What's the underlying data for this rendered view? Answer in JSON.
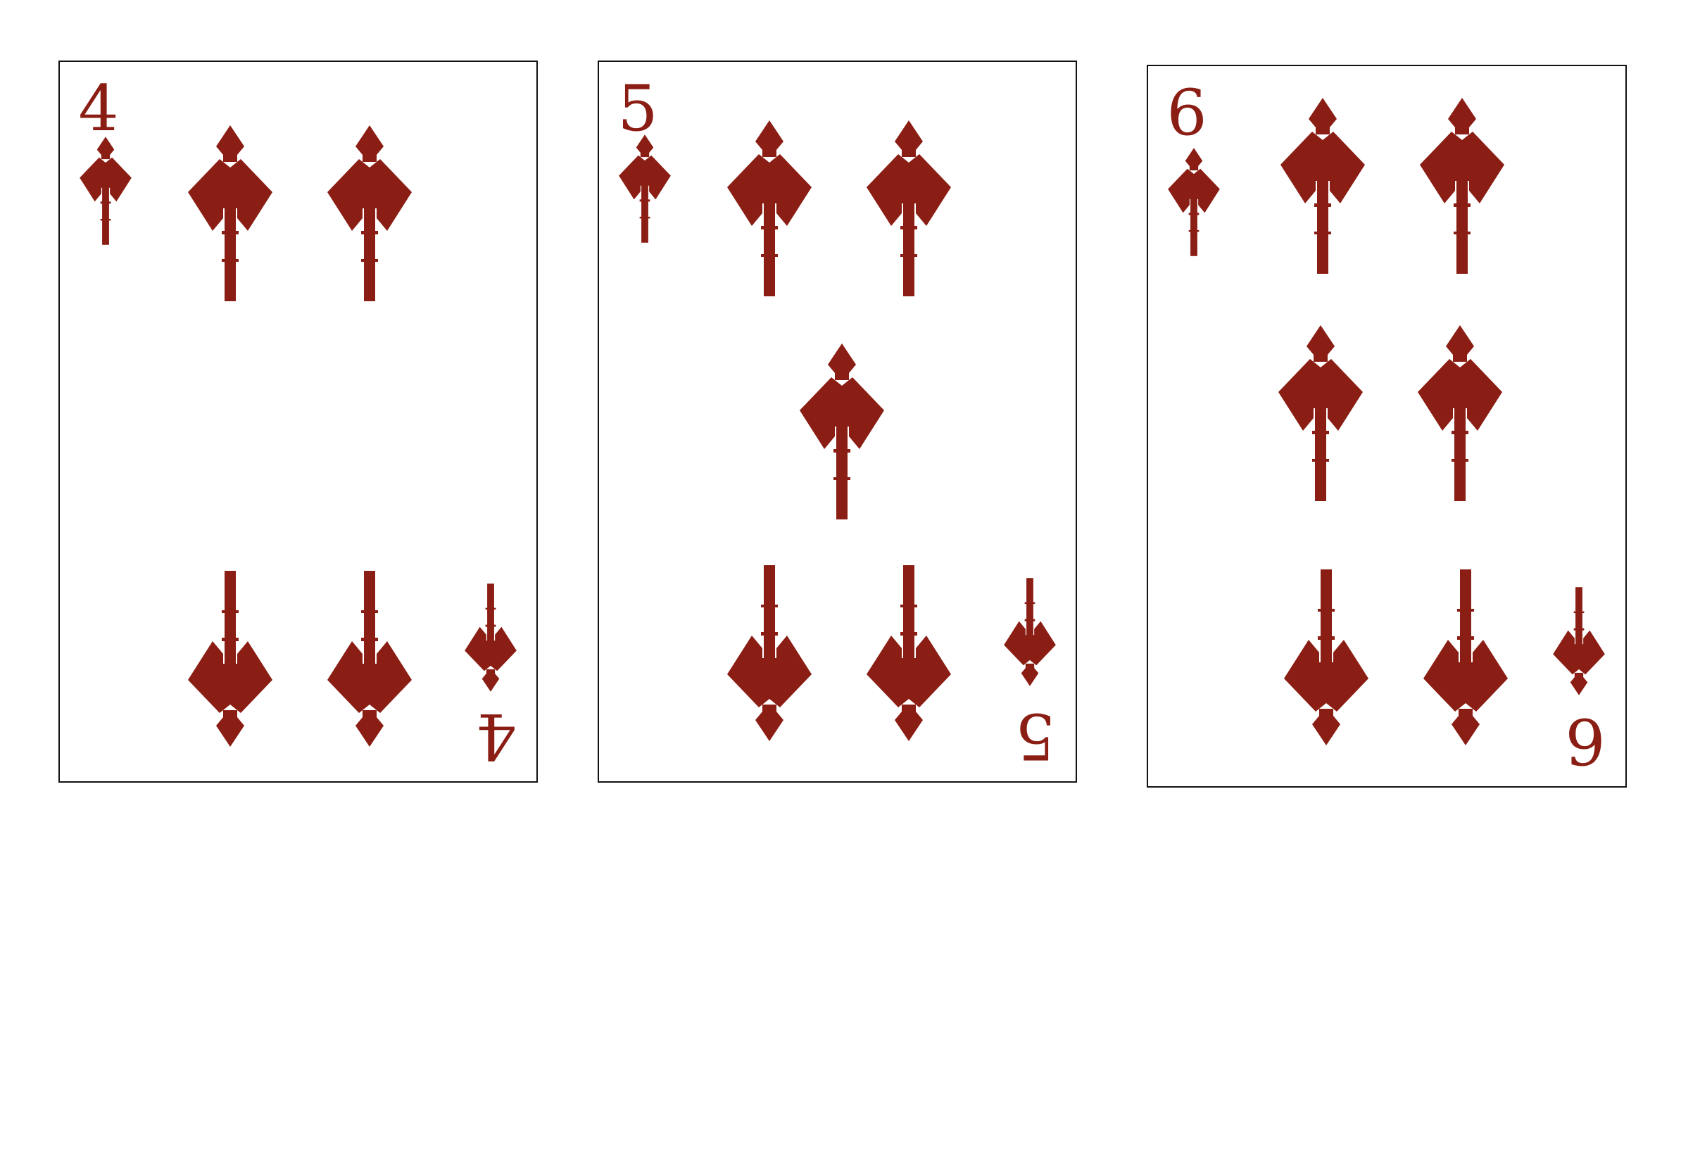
{
  "colors": {
    "suit": "#8b1e14",
    "card_border": "#111111",
    "card_background": "#ffffff"
  },
  "suit_icon": "spade-leaf-icon",
  "cards": [
    {
      "rank": "4",
      "rank_flipped": "4"
    },
    {
      "rank": "5",
      "rank_flipped": "5"
    },
    {
      "rank": "6",
      "rank_flipped": "6"
    }
  ]
}
